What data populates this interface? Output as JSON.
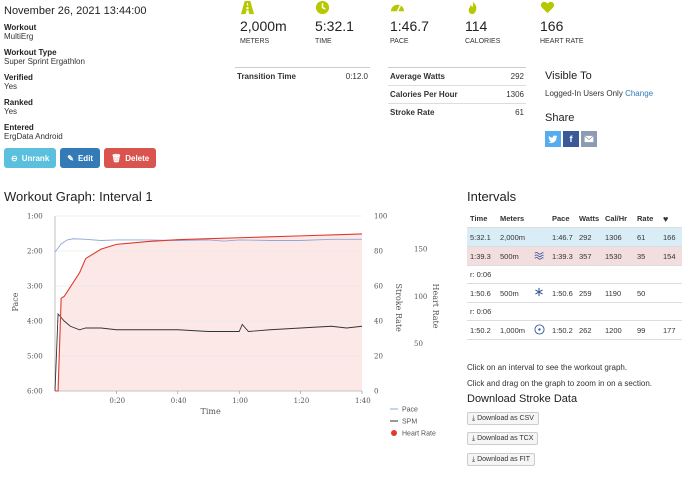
{
  "workout": {
    "date": "November 26, 2021 13:44:00",
    "fields": [
      {
        "label": "Workout",
        "value": "MultiErg"
      },
      {
        "label": "Workout Type",
        "value": "Super Sprint Ergathlon"
      },
      {
        "label": "Verified",
        "value": "Yes"
      },
      {
        "label": "Ranked",
        "value": "Yes"
      },
      {
        "label": "Entered",
        "value": "ErgData Android"
      }
    ],
    "buttons": {
      "unrank": "Unrank",
      "edit": "Edit",
      "delete": "Delete"
    }
  },
  "stats": [
    {
      "value": "2,000m",
      "label": "METERS",
      "icon": "road-icon"
    },
    {
      "value": "5:32.1",
      "label": "TIME",
      "icon": "clock-icon"
    },
    {
      "value": "1:46.7",
      "label": "PACE",
      "icon": "speedometer-icon"
    },
    {
      "value": "114",
      "label": "CALORIES",
      "icon": "flame-icon"
    },
    {
      "value": "166",
      "label": "HEART RATE",
      "icon": "heart-icon"
    }
  ],
  "transition": {
    "label": "Transition Time",
    "value": "0:12.0"
  },
  "summary": [
    {
      "label": "Average Watts",
      "value": "292"
    },
    {
      "label": "Calories Per Hour",
      "value": "1306"
    },
    {
      "label": "Stroke Rate",
      "value": "61"
    }
  ],
  "visibility": {
    "title": "Visible To",
    "value": "Logged-In Users Only",
    "change": "Change"
  },
  "share": {
    "title": "Share"
  },
  "graph": {
    "title": "Workout Graph: Interval 1"
  },
  "chart_data": {
    "type": "line",
    "title": "Workout Graph: Interval 1",
    "xlabel": "Time",
    "x_ticks": [
      "0:20",
      "0:40",
      "1:00",
      "1:20",
      "1:40"
    ],
    "pace_ticks": [
      "1:00",
      "2:00",
      "3:00",
      "4:00",
      "5:00",
      "6:00"
    ],
    "spm_ticks": [
      "100",
      "80",
      "60",
      "40",
      "20",
      "0"
    ],
    "hr_ticks": [
      "150",
      "100",
      "50"
    ],
    "y_left_label": "Pace",
    "y_right_label_1": "Stroke Rate",
    "y_right_label_2": "Heart Rate",
    "xlim": [
      0,
      100
    ],
    "series": [
      {
        "name": "Pace",
        "color": "#8fa8d8",
        "axis": "pace_seconds_inverted",
        "x": [
          0,
          2,
          4,
          6,
          10,
          15,
          20,
          30,
          40,
          50,
          55,
          60,
          70,
          80,
          90,
          100
        ],
        "values": [
          122,
          108,
          101,
          99,
          100,
          102,
          101,
          101,
          102,
          101,
          103,
          101,
          102,
          102,
          100,
          100
        ]
      },
      {
        "name": "SPM",
        "color": "#333333",
        "axis": "spm",
        "x": [
          0,
          1,
          2,
          3,
          5,
          8,
          10,
          15,
          20,
          30,
          40,
          50,
          60,
          61,
          63,
          70,
          80,
          90,
          95,
          100
        ],
        "values": [
          0,
          44,
          42,
          40,
          37,
          35,
          36,
          36,
          35,
          35,
          35,
          34,
          34,
          38,
          34,
          35,
          36,
          37,
          36,
          37
        ]
      },
      {
        "name": "Heart Rate",
        "color": "#e0392d",
        "axis": "hr",
        "x": [
          0,
          1,
          2,
          3,
          5,
          8,
          10,
          15,
          20,
          30,
          40,
          50,
          60,
          70,
          80,
          90,
          100
        ],
        "values": [
          0,
          0,
          98,
          100,
          110,
          125,
          140,
          150,
          155,
          158,
          160,
          161,
          162,
          163,
          164,
          165,
          166
        ]
      }
    ],
    "legend": [
      "Pace",
      "SPM",
      "Heart Rate"
    ],
    "legend_placement": "bottom-right"
  },
  "intervals": {
    "title": "Intervals",
    "headers": [
      "Time",
      "Meters",
      "",
      "Pace",
      "Watts",
      "Cal/Hr",
      "Rate",
      "♥"
    ],
    "rows": [
      {
        "type": "active",
        "time": "5:32.1",
        "meters": "2,000m",
        "icon": "",
        "pace": "1:46.7",
        "watts": "292",
        "calhr": "1306",
        "rate": "61",
        "hr": "166"
      },
      {
        "type": "rest",
        "time": "1:39.3",
        "meters": "500m",
        "icon": "waves-icon",
        "pace": "1:39.3",
        "watts": "357",
        "calhr": "1530",
        "rate": "35",
        "hr": "154"
      },
      {
        "type": "note",
        "text": "r: 0:06"
      },
      {
        "type": "normal",
        "time": "1:50.6",
        "meters": "500m",
        "icon": "snowflake-icon",
        "pace": "1:50.6",
        "watts": "259",
        "calhr": "1190",
        "rate": "50",
        "hr": ""
      },
      {
        "type": "note",
        "text": "r: 0:06"
      },
      {
        "type": "normal",
        "time": "1:50.2",
        "meters": "1,000m",
        "icon": "bike-wheel-icon",
        "pace": "1:50.2",
        "watts": "262",
        "calhr": "1200",
        "rate": "99",
        "hr": "177"
      }
    ]
  },
  "hints": [
    "Click on an interval to see the workout graph.",
    "Click and drag on the graph to zoom in on a section."
  ],
  "download": {
    "title": "Download Stroke Data",
    "csv": "Download as CSV",
    "tcx": "Download as TCX",
    "fit": "Download as FIT"
  }
}
